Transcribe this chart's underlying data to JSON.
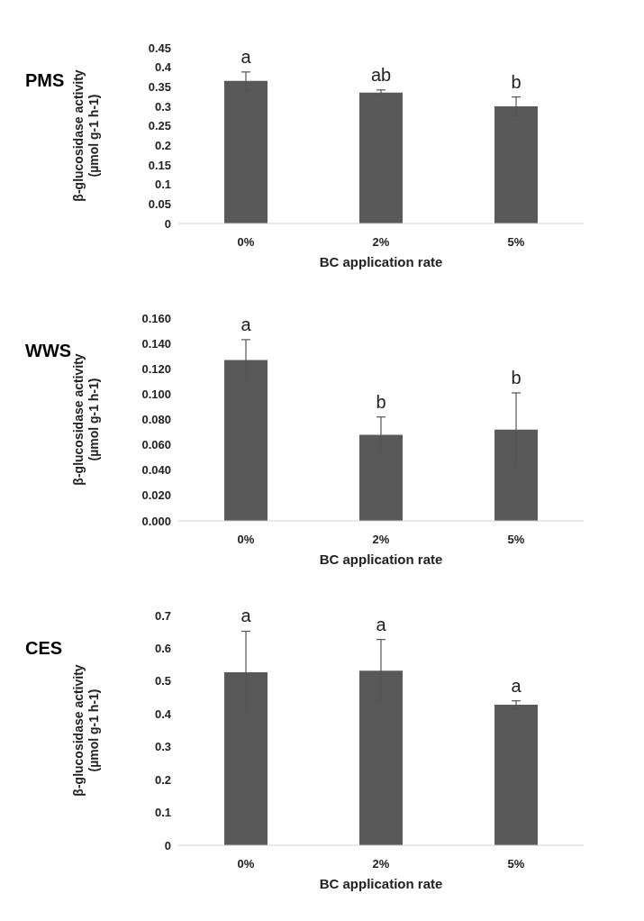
{
  "chart_data": [
    {
      "type": "bar",
      "title": "PMS",
      "xlabel": "BC application rate",
      "ylabel": "β-glucosidase activity\n(µmol g-1 h-1)",
      "categories": [
        "0%",
        "2%",
        "5%"
      ],
      "values": [
        0.365,
        0.335,
        0.3
      ],
      "errors": [
        0.023,
        0.007,
        0.024
      ],
      "color": "#595959",
      "ylim": [
        0,
        0.45
      ],
      "yticks": [
        0,
        0.05,
        0.1,
        0.15,
        0.2,
        0.25,
        0.3,
        0.35,
        0.4,
        0.45
      ],
      "annotations": [
        {
          "text": "a",
          "x": "0%",
          "y": 0.388
        },
        {
          "text": "ab",
          "x": "2%",
          "y": 0.342
        },
        {
          "text": "b",
          "x": "5%",
          "y": 0.324
        }
      ]
    },
    {
      "type": "bar",
      "title": "WWS",
      "xlabel": "BC application rate",
      "ylabel": "β-glucosidase activity\n(µmol g-1 h-1)",
      "categories": [
        "0%",
        "2%",
        "5%"
      ],
      "values": [
        0.127,
        0.068,
        0.072
      ],
      "errors": [
        0.016,
        0.014,
        0.029
      ],
      "color": "#595959",
      "ylim": [
        0,
        0.16
      ],
      "yticks": [
        {
          "value": 0,
          "label": "0.000"
        },
        {
          "value": 0.02,
          "label": "0.020"
        },
        {
          "value": 0.04,
          "label": "0.040"
        },
        {
          "value": 0.06,
          "label": "0.060"
        },
        {
          "value": 0.08,
          "label": "0.080"
        },
        {
          "value": 0.1,
          "label": "0.100"
        },
        {
          "value": 0.12,
          "label": "0.120"
        },
        {
          "value": 0.14,
          "label": "0.140"
        },
        {
          "value": 0.16,
          "label": "0.160"
        }
      ],
      "annotations": [
        {
          "text": "a",
          "x": "0%",
          "y": 0.143
        },
        {
          "text": "b",
          "x": "2%",
          "y": 0.082
        },
        {
          "text": "b",
          "x": "5%",
          "y": 0.101
        }
      ]
    },
    {
      "type": "bar",
      "title": "CES",
      "xlabel": "BC application rate",
      "ylabel": "β-glucosidase activity\n(µmol g-1 h-1)",
      "categories": [
        "0%",
        "2%",
        "5%"
      ],
      "values": [
        0.527,
        0.532,
        0.428
      ],
      "errors": [
        0.125,
        0.095,
        0.012
      ],
      "color": "#595959",
      "ylim": [
        0,
        0.7
      ],
      "yticks": [
        0,
        0.1,
        0.2,
        0.3,
        0.4,
        0.5,
        0.6,
        0.7
      ],
      "annotations": [
        {
          "text": "a",
          "x": "0%",
          "y": 0.652
        },
        {
          "text": "a",
          "x": "2%",
          "y": 0.627
        },
        {
          "text": "a",
          "x": "5%",
          "y": 0.44
        }
      ]
    }
  ]
}
